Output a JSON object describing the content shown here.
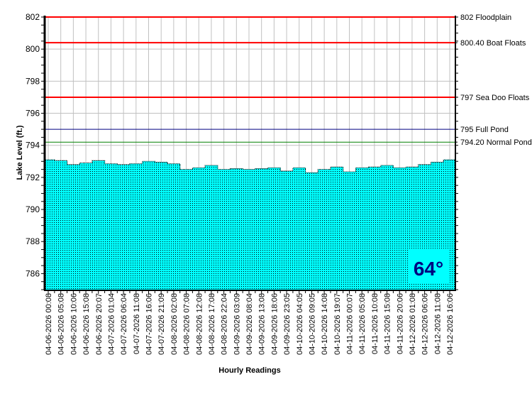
{
  "chart_data": {
    "type": "area",
    "title": "",
    "xlabel": "Hourly Readings",
    "ylabel": "Lake Level (ft.)",
    "ylim": [
      785,
      802
    ],
    "yticks": [
      786,
      788,
      790,
      792,
      794,
      796,
      798,
      800,
      802
    ],
    "grid": true,
    "colors": {
      "fill": "#00ffff",
      "dots": "#000000",
      "grid": "#c0c0c0",
      "axis": "#000000"
    },
    "categories": [
      "04-06-2026 00:08",
      "04-06-2026 05:08",
      "04-06-2026 10:06",
      "04-06-2026 15:08",
      "04-06-2026 20:07",
      "04-07-2026 01:04",
      "04-07-2026 06:04",
      "04-07-2026 11:08",
      "04-07-2026 16:06",
      "04-07-2026 21:09",
      "04-08-2026 02:08",
      "04-08-2026 07:08",
      "04-08-2026 12:08",
      "04-08-2026 17:08",
      "04-08-2026 22:04",
      "04-09-2026 03:09",
      "04-09-2026 08:04",
      "04-09-2026 13:08",
      "04-09-2026 18:06",
      "04-09-2026 23:05",
      "04-10-2026 04:05",
      "04-10-2026 09:05",
      "04-10-2026 14:08",
      "04-10-2026 19:07",
      "04-11-2026 00:07",
      "04-11-2026 05:08",
      "04-11-2026 10:08",
      "04-11-2026 15:08",
      "04-11-2026 20:06",
      "04-12-2026 01:08",
      "04-12-2026 06:06",
      "04-12-2026 11:08",
      "04-12-2026 16:06"
    ],
    "values": [
      793.1,
      793.05,
      792.8,
      792.9,
      793.05,
      792.85,
      792.8,
      792.85,
      793.0,
      792.95,
      792.85,
      792.5,
      792.6,
      792.75,
      792.5,
      792.55,
      792.5,
      792.55,
      792.6,
      792.4,
      792.6,
      792.3,
      792.5,
      792.65,
      792.35,
      792.6,
      792.65,
      792.75,
      792.6,
      792.65,
      792.8,
      792.95,
      793.1
    ],
    "reference_lines": [
      {
        "value": 802,
        "label": "802 Floodplain",
        "color": "#ff0000"
      },
      {
        "value": 800.4,
        "label": "800.40 Boat Floats",
        "color": "#ff0000"
      },
      {
        "value": 797,
        "label": "797 Sea Doo Floats",
        "color": "#ff0000"
      },
      {
        "value": 795,
        "label": "795 Full Pond",
        "color": "#000080"
      },
      {
        "value": 794.2,
        "label": "794.20 Normal Pond",
        "color": "#008000"
      }
    ],
    "annotation": {
      "text": "64°",
      "color": "#000080",
      "background": "#00ffff"
    }
  }
}
